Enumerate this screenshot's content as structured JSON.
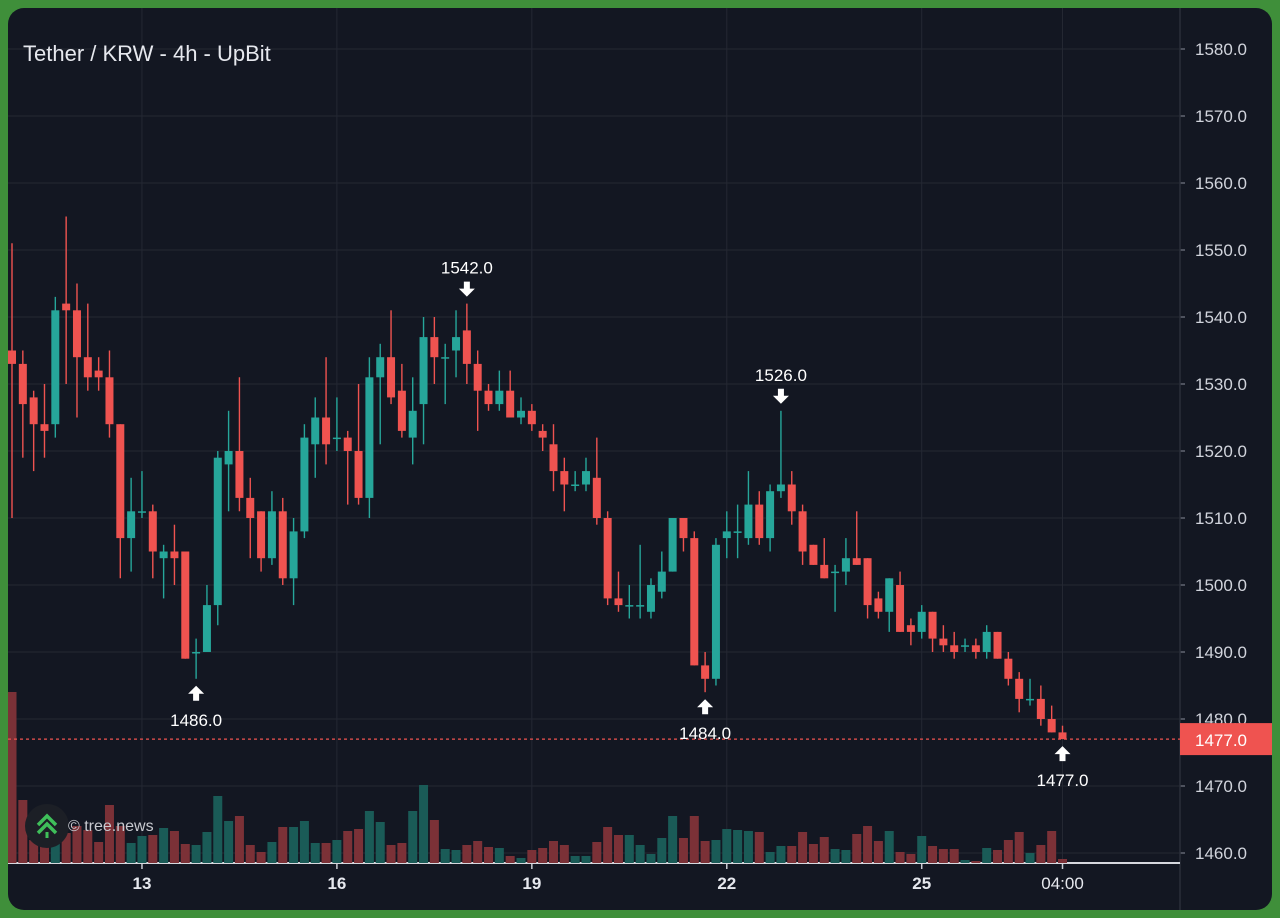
{
  "chart_data": {
    "type": "candlestick",
    "title": "Tether / KRW - 4h - UpBit",
    "credit": "© tree.news",
    "ylim": [
      1460,
      1580
    ],
    "y_ticks": [
      "1460.0",
      "1470.0",
      "1480.0",
      "1490.0",
      "1500.0",
      "1510.0",
      "1520.0",
      "1530.0",
      "1540.0",
      "1550.0",
      "1560.0",
      "1570.0",
      "1580.0"
    ],
    "x_ticks": [
      {
        "label": "13",
        "index": 12,
        "bold": true
      },
      {
        "label": "16",
        "index": 30,
        "bold": true
      },
      {
        "label": "19",
        "index": 48,
        "bold": true
      },
      {
        "label": "22",
        "index": 66,
        "bold": true
      },
      {
        "label": "25",
        "index": 84,
        "bold": true
      },
      {
        "label": "04:00",
        "index": 97,
        "bold": false
      }
    ],
    "current_price": {
      "value": 1477,
      "label": "1477.0"
    },
    "annotations": [
      {
        "label": "1486.0",
        "index": 17,
        "price": 1486,
        "dir": "up"
      },
      {
        "label": "1542.0",
        "index": 42,
        "price": 1542,
        "dir": "down"
      },
      {
        "label": "1484.0",
        "index": 64,
        "price": 1484,
        "dir": "up"
      },
      {
        "label": "1526.0",
        "index": 71,
        "price": 1526,
        "dir": "down"
      },
      {
        "label": "1477.0",
        "index": 97,
        "price": 1477,
        "dir": "up"
      }
    ],
    "colors": {
      "up": "#26a69a",
      "down": "#ef5350",
      "vol_up": "#1a5b57",
      "vol_down": "#7b3137",
      "grid": "#242833",
      "text": "#d1d4dc"
    },
    "ohlc": [
      [
        1535,
        1551,
        1510,
        1533
      ],
      [
        1533,
        1535,
        1519,
        1527
      ],
      [
        1528,
        1529,
        1517,
        1524
      ],
      [
        1524,
        1530,
        1519,
        1523
      ],
      [
        1524,
        1543,
        1522,
        1541
      ],
      [
        1542,
        1555,
        1530,
        1541
      ],
      [
        1541,
        1545,
        1525,
        1534
      ],
      [
        1534,
        1542,
        1529,
        1531
      ],
      [
        1532,
        1534,
        1529,
        1531
      ],
      [
        1531,
        1535,
        1522,
        1524
      ],
      [
        1524,
        1524,
        1501,
        1507
      ],
      [
        1507,
        1516,
        1502,
        1511
      ],
      [
        1511,
        1517,
        1510,
        1511
      ],
      [
        1511,
        1512,
        1501,
        1505
      ],
      [
        1504,
        1506,
        1498,
        1505
      ],
      [
        1505,
        1509,
        1500,
        1504
      ],
      [
        1505,
        1505,
        1489,
        1489
      ],
      [
        1490,
        1492,
        1486,
        1490
      ],
      [
        1490,
        1500,
        1490,
        1497
      ],
      [
        1497,
        1520,
        1494,
        1519
      ],
      [
        1518,
        1526,
        1511,
        1520
      ],
      [
        1520,
        1531,
        1511,
        1513
      ],
      [
        1513,
        1516,
        1504,
        1510
      ],
      [
        1511,
        1511,
        1502,
        1504
      ],
      [
        1504,
        1514,
        1503,
        1511
      ],
      [
        1511,
        1513,
        1500,
        1501
      ],
      [
        1501,
        1510,
        1497,
        1508
      ],
      [
        1508,
        1524,
        1507,
        1522
      ],
      [
        1521,
        1528,
        1516,
        1525
      ],
      [
        1525,
        1534,
        1518,
        1521
      ],
      [
        1522,
        1528,
        1520,
        1522
      ],
      [
        1522,
        1523,
        1512,
        1520
      ],
      [
        1520,
        1530,
        1512,
        1513
      ],
      [
        1513,
        1534,
        1510,
        1531
      ],
      [
        1531,
        1536,
        1521,
        1534
      ],
      [
        1534,
        1541,
        1527,
        1528
      ],
      [
        1529,
        1533,
        1522,
        1523
      ],
      [
        1522,
        1531,
        1518,
        1526
      ],
      [
        1527,
        1540,
        1521,
        1537
      ],
      [
        1537,
        1540,
        1530,
        1534
      ],
      [
        1534,
        1536,
        1527,
        1534
      ],
      [
        1535,
        1541,
        1531,
        1537
      ],
      [
        1538,
        1542,
        1530,
        1533
      ],
      [
        1533,
        1535,
        1523,
        1529
      ],
      [
        1529,
        1530,
        1526,
        1527
      ],
      [
        1527,
        1532,
        1526,
        1529
      ],
      [
        1529,
        1532,
        1525,
        1525
      ],
      [
        1525,
        1528,
        1524,
        1526
      ],
      [
        1526,
        1527,
        1523,
        1524
      ],
      [
        1523,
        1524,
        1520,
        1522
      ],
      [
        1521,
        1524,
        1514,
        1517
      ],
      [
        1517,
        1519,
        1511,
        1515
      ],
      [
        1515,
        1517,
        1514,
        1515
      ],
      [
        1515,
        1519,
        1514,
        1517
      ],
      [
        1516,
        1522,
        1509,
        1510
      ],
      [
        1510,
        1511,
        1497,
        1498
      ],
      [
        1498,
        1502,
        1496,
        1497
      ],
      [
        1497,
        1500,
        1495,
        1497
      ],
      [
        1497,
        1506,
        1495,
        1497
      ],
      [
        1496,
        1501,
        1495,
        1500
      ],
      [
        1499,
        1505,
        1498,
        1502
      ],
      [
        1502,
        1510,
        1502,
        1510
      ],
      [
        1510,
        1510,
        1505,
        1507
      ],
      [
        1507,
        1508,
        1488,
        1488
      ],
      [
        1488,
        1490,
        1484,
        1486
      ],
      [
        1486,
        1507,
        1485,
        1506
      ],
      [
        1507,
        1511,
        1504,
        1508
      ],
      [
        1508,
        1512,
        1504,
        1508
      ],
      [
        1507,
        1517,
        1506,
        1512
      ],
      [
        1512,
        1514,
        1506,
        1507
      ],
      [
        1507,
        1515,
        1505,
        1514
      ],
      [
        1514,
        1526,
        1513,
        1515
      ],
      [
        1515,
        1517,
        1509,
        1511
      ],
      [
        1511,
        1512,
        1503,
        1505
      ],
      [
        1506,
        1506,
        1503,
        1503
      ],
      [
        1503,
        1507,
        1501,
        1501
      ],
      [
        1502,
        1503,
        1496,
        1502
      ],
      [
        1502,
        1507,
        1500,
        1504
      ],
      [
        1504,
        1511,
        1503,
        1503
      ],
      [
        1504,
        1504,
        1495,
        1497
      ],
      [
        1498,
        1499,
        1495,
        1496
      ],
      [
        1496,
        1501,
        1493,
        1501
      ],
      [
        1500,
        1502,
        1493,
        1493
      ],
      [
        1494,
        1495,
        1491,
        1493
      ],
      [
        1493,
        1497,
        1492,
        1496
      ],
      [
        1496,
        1496,
        1490,
        1492
      ],
      [
        1492,
        1494,
        1490,
        1491
      ],
      [
        1491,
        1493,
        1489,
        1490
      ],
      [
        1491,
        1492,
        1490,
        1491
      ],
      [
        1491,
        1492,
        1489,
        1490
      ],
      [
        1490,
        1494,
        1489,
        1493
      ],
      [
        1493,
        1493,
        1489,
        1489
      ],
      [
        1489,
        1490,
        1485,
        1486
      ],
      [
        1486,
        1487,
        1481,
        1483
      ],
      [
        1483,
        1486,
        1482,
        1483
      ],
      [
        1483,
        1485,
        1479,
        1480
      ],
      [
        1480,
        1482,
        1478,
        1478
      ],
      [
        1478,
        1479,
        1477,
        1477
      ]
    ],
    "volume_relative": [
      171,
      63,
      23,
      17,
      23,
      30,
      37,
      33,
      21,
      58,
      37,
      20,
      27,
      28,
      35,
      32,
      19,
      18,
      31,
      67,
      42,
      47,
      18,
      11,
      21,
      36,
      36,
      42,
      20,
      20,
      23,
      32,
      34,
      52,
      41,
      18,
      20,
      52,
      78,
      43,
      14,
      13,
      18,
      22,
      16,
      15,
      7,
      5,
      13,
      15,
      22,
      18,
      7,
      7,
      21,
      36,
      28,
      28,
      18,
      9,
      25,
      47,
      25,
      47,
      22,
      23,
      34,
      33,
      32,
      31,
      11,
      17,
      17,
      31,
      19,
      26,
      14,
      13,
      29,
      37,
      22,
      32,
      11,
      9,
      27,
      17,
      14,
      14,
      3,
      2,
      15,
      13,
      23,
      31,
      10,
      18,
      32,
      4
    ]
  }
}
